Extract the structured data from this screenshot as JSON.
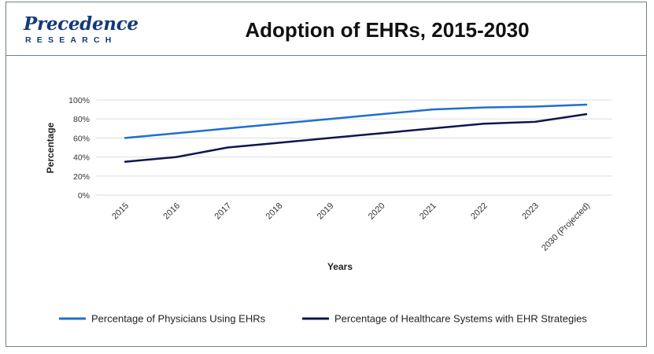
{
  "header": {
    "logo_top": "Precedence",
    "logo_bottom": "RESEARCH",
    "title": "Adoption of EHRs, 2015-2030"
  },
  "colors": {
    "physicians": "#1f6fd1",
    "systems": "#0f1550",
    "grid": "#dddddd",
    "border": "#6f7f8f"
  },
  "chart_data": {
    "type": "line",
    "title": "Adoption of EHRs, 2015-2030",
    "xlabel": "Years",
    "ylabel": "Percentage",
    "categories": [
      "2015",
      "2016",
      "2017",
      "2018",
      "2019",
      "2020",
      "2021",
      "2022",
      "2023",
      "2030 (Projected)"
    ],
    "y_ticks": [
      "0%",
      "20%",
      "40%",
      "60%",
      "80%",
      "100%"
    ],
    "ylim": [
      0,
      100
    ],
    "grid": true,
    "legend_position": "bottom",
    "series": [
      {
        "name": "Percentage of Physicians Using EHRs",
        "values": [
          60,
          65,
          70,
          75,
          80,
          85,
          90,
          92,
          93,
          95
        ]
      },
      {
        "name": "Percentage of Healthcare Systems with EHR Strategies",
        "values": [
          35,
          40,
          50,
          55,
          60,
          65,
          70,
          75,
          77,
          85
        ]
      }
    ]
  }
}
